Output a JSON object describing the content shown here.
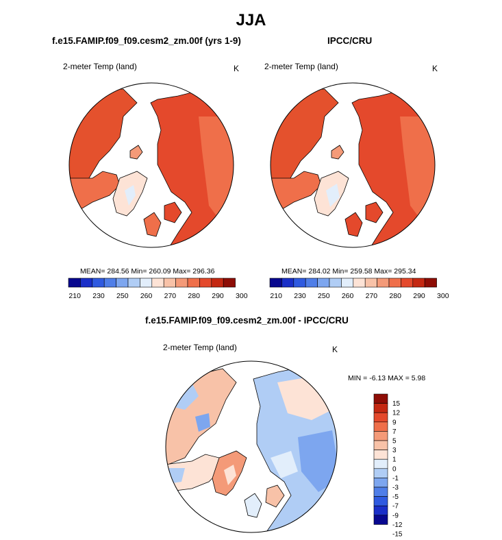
{
  "page": {
    "title": "JJA",
    "left_title": "f.e15.FAMIP.f09_f09.cesm2_zm.00f (yrs 1-9)",
    "right_title": "IPCC/CRU",
    "diff_title": "f.e15.FAMIP.f09_f09.cesm2_zm.00f - IPCC/CRU"
  },
  "colors": {
    "abs_scale": [
      "#08088f",
      "#1a2fc8",
      "#2f5ae0",
      "#4f7ee8",
      "#7da6ef",
      "#b0cdf5",
      "#e2eefb",
      "#fde3d6",
      "#f8c2a8",
      "#f49a78",
      "#ef6f4a",
      "#e4492c",
      "#c42812",
      "#8e0d06"
    ],
    "diff_scale": [
      "#08088f",
      "#1a2fc8",
      "#2f5ae0",
      "#4f7ee8",
      "#7da6ef",
      "#b0cdf5",
      "#e2eefb",
      "#fde3d6",
      "#f8c2a8",
      "#f49a78",
      "#ef6f4a",
      "#e4492c",
      "#c42812",
      "#8e0d06"
    ],
    "land_fill_abs": "#e8552f",
    "land_fill_cold": "#f6c3ab"
  },
  "chart_data": [
    {
      "type": "heatmap",
      "title": "f.e15.FAMIP.f09_f09.cesm2_zm.00f (yrs 1-9)",
      "variable": "2-meter Temp (land)",
      "units": "K",
      "projection": "north polar stereographic",
      "stats": {
        "label": "MEAN= 284.56  Min= 260.09  Max= 296.36",
        "mean": 284.56,
        "min": 260.09,
        "max": 296.36
      },
      "colorbar": {
        "levels": [
          210,
          220,
          230,
          240,
          250,
          255,
          260,
          265,
          270,
          275,
          280,
          285,
          290,
          295,
          300
        ],
        "tick_labels": [
          "210",
          "230",
          "250",
          "260",
          "270",
          "280",
          "290",
          "300"
        ]
      }
    },
    {
      "type": "heatmap",
      "title": "IPCC/CRU",
      "variable": "2-meter Temp (land)",
      "units": "K",
      "projection": "north polar stereographic",
      "stats": {
        "label": "MEAN= 284.02  Min= 259.58  Max= 295.34",
        "mean": 284.02,
        "min": 259.58,
        "max": 295.34
      },
      "colorbar": {
        "levels": [
          210,
          220,
          230,
          240,
          250,
          255,
          260,
          265,
          270,
          275,
          280,
          285,
          290,
          295,
          300
        ],
        "tick_labels": [
          "210",
          "230",
          "250",
          "260",
          "270",
          "280",
          "290",
          "300"
        ]
      }
    },
    {
      "type": "heatmap",
      "title": "f.e15.FAMIP.f09_f09.cesm2_zm.00f - IPCC/CRU",
      "variable": "2-meter Temp (land)",
      "units": "K",
      "projection": "north polar stereographic",
      "stats": {
        "label": "MIN =  -6.13 MAX =   5.98",
        "min": -6.13,
        "max": 5.98
      },
      "colorbar": {
        "orientation": "vertical",
        "levels": [
          -15,
          -12,
          -9,
          -7,
          -5,
          -3,
          -1,
          0,
          1,
          3,
          5,
          7,
          9,
          12,
          15
        ],
        "tick_labels": [
          "15",
          "12",
          "9",
          "7",
          "5",
          "3",
          "1",
          "0",
          "-1",
          "-3",
          "-5",
          "-7",
          "-9",
          "-12",
          "-15"
        ]
      }
    }
  ]
}
